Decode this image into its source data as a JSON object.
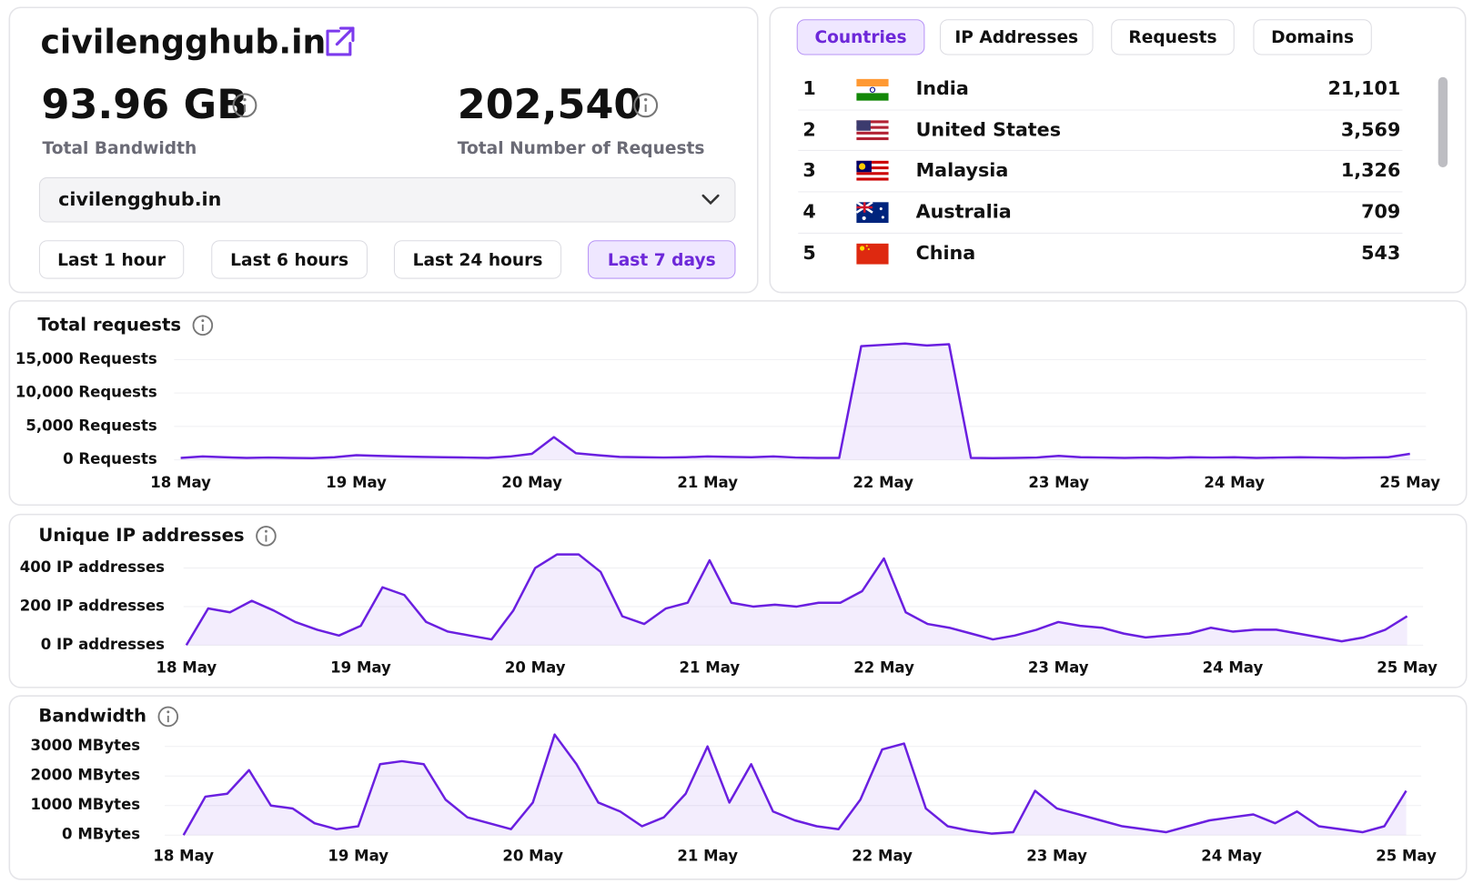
{
  "header": {
    "site": "civilengghub.in"
  },
  "stats": [
    {
      "value": "93.96 GB",
      "label": "Total Bandwidth"
    },
    {
      "value": "202,540",
      "label": "Total Number of Requests"
    }
  ],
  "selector": "civilengghub.in",
  "time_ranges": [
    "Last 1 hour",
    "Last 6 hours",
    "Last 24 hours",
    "Last 7 days"
  ],
  "tabs": [
    "Countries",
    "IP Addresses",
    "Requests",
    "Domains"
  ],
  "countries": [
    {
      "rank": "1",
      "country": "India",
      "requests": "21,101"
    },
    {
      "rank": "2",
      "country": "United States",
      "requests": "3,569"
    },
    {
      "rank": "3",
      "country": "Malaysia",
      "requests": "1,326"
    },
    {
      "rank": "4",
      "country": "Australia",
      "requests": "709"
    },
    {
      "rank": "5",
      "country": "China",
      "requests": "543"
    }
  ],
  "chart_data": [
    {
      "type": "line",
      "title": "Total requests",
      "color": "#6a1fe0",
      "grid": true,
      "x_labels": [
        "18 May",
        "19 May",
        "20 May",
        "21 May",
        "22 May",
        "23 May",
        "24 May",
        "25 May"
      ],
      "ylim": [
        0,
        18000
      ],
      "yticks": [
        {
          "value": 0,
          "label": "0 Requests"
        },
        {
          "value": 5000,
          "label": "5,000 Requests"
        },
        {
          "value": 10000,
          "label": "10,000 Requests"
        },
        {
          "value": 15000,
          "label": "15,000 Requests"
        }
      ],
      "values": [
        300,
        500,
        400,
        300,
        350,
        300,
        250,
        400,
        700,
        600,
        500,
        450,
        400,
        350,
        300,
        500,
        900,
        3400,
        1000,
        700,
        450,
        400,
        350,
        400,
        500,
        450,
        400,
        500,
        350,
        300,
        300,
        17000,
        17200,
        17400,
        17100,
        17300,
        300,
        250,
        300,
        350,
        600,
        400,
        350,
        300,
        350,
        300,
        400,
        350,
        400,
        300,
        350,
        400,
        350,
        300,
        350,
        400,
        900
      ]
    },
    {
      "type": "line",
      "title": "Unique IP addresses",
      "color": "#6a1fe0",
      "grid": true,
      "x_labels": [
        "18 May",
        "19 May",
        "20 May",
        "21 May",
        "22 May",
        "23 May",
        "24 May",
        "25 May"
      ],
      "ylim": [
        0,
        480
      ],
      "yticks": [
        {
          "value": 0,
          "label": "0 IP addresses"
        },
        {
          "value": 200,
          "label": "200 IP addresses"
        },
        {
          "value": 400,
          "label": "400 IP addresses"
        }
      ],
      "values": [
        0,
        190,
        170,
        230,
        180,
        120,
        80,
        50,
        100,
        300,
        260,
        120,
        70,
        50,
        30,
        180,
        400,
        470,
        470,
        380,
        150,
        110,
        190,
        220,
        440,
        220,
        200,
        210,
        200,
        220,
        220,
        280,
        450,
        170,
        110,
        90,
        60,
        30,
        50,
        80,
        120,
        100,
        90,
        60,
        40,
        50,
        60,
        90,
        70,
        80,
        80,
        60,
        40,
        20,
        40,
        80,
        150
      ]
    },
    {
      "type": "line",
      "title": "Bandwidth",
      "color": "#6a1fe0",
      "grid": true,
      "x_labels": [
        "18 May",
        "19 May",
        "20 May",
        "21 May",
        "22 May",
        "23 May",
        "24 May",
        "25 May"
      ],
      "ylim": [
        0,
        3500
      ],
      "yticks": [
        {
          "value": 0,
          "label": "0 MBytes"
        },
        {
          "value": 1000,
          "label": "1000 MBytes"
        },
        {
          "value": 2000,
          "label": "2000 MBytes"
        },
        {
          "value": 3000,
          "label": "3000 MBytes"
        }
      ],
      "values": [
        0,
        1300,
        1400,
        2200,
        1000,
        900,
        400,
        200,
        300,
        2400,
        2500,
        2400,
        1200,
        600,
        400,
        200,
        1100,
        3400,
        2400,
        1100,
        800,
        300,
        600,
        1400,
        3000,
        1100,
        2400,
        800,
        500,
        300,
        200,
        1200,
        2900,
        3100,
        900,
        300,
        150,
        50,
        100,
        1500,
        900,
        700,
        500,
        300,
        200,
        100,
        300,
        500,
        600,
        700,
        400,
        800,
        300,
        200,
        100,
        300,
        1500
      ]
    }
  ]
}
